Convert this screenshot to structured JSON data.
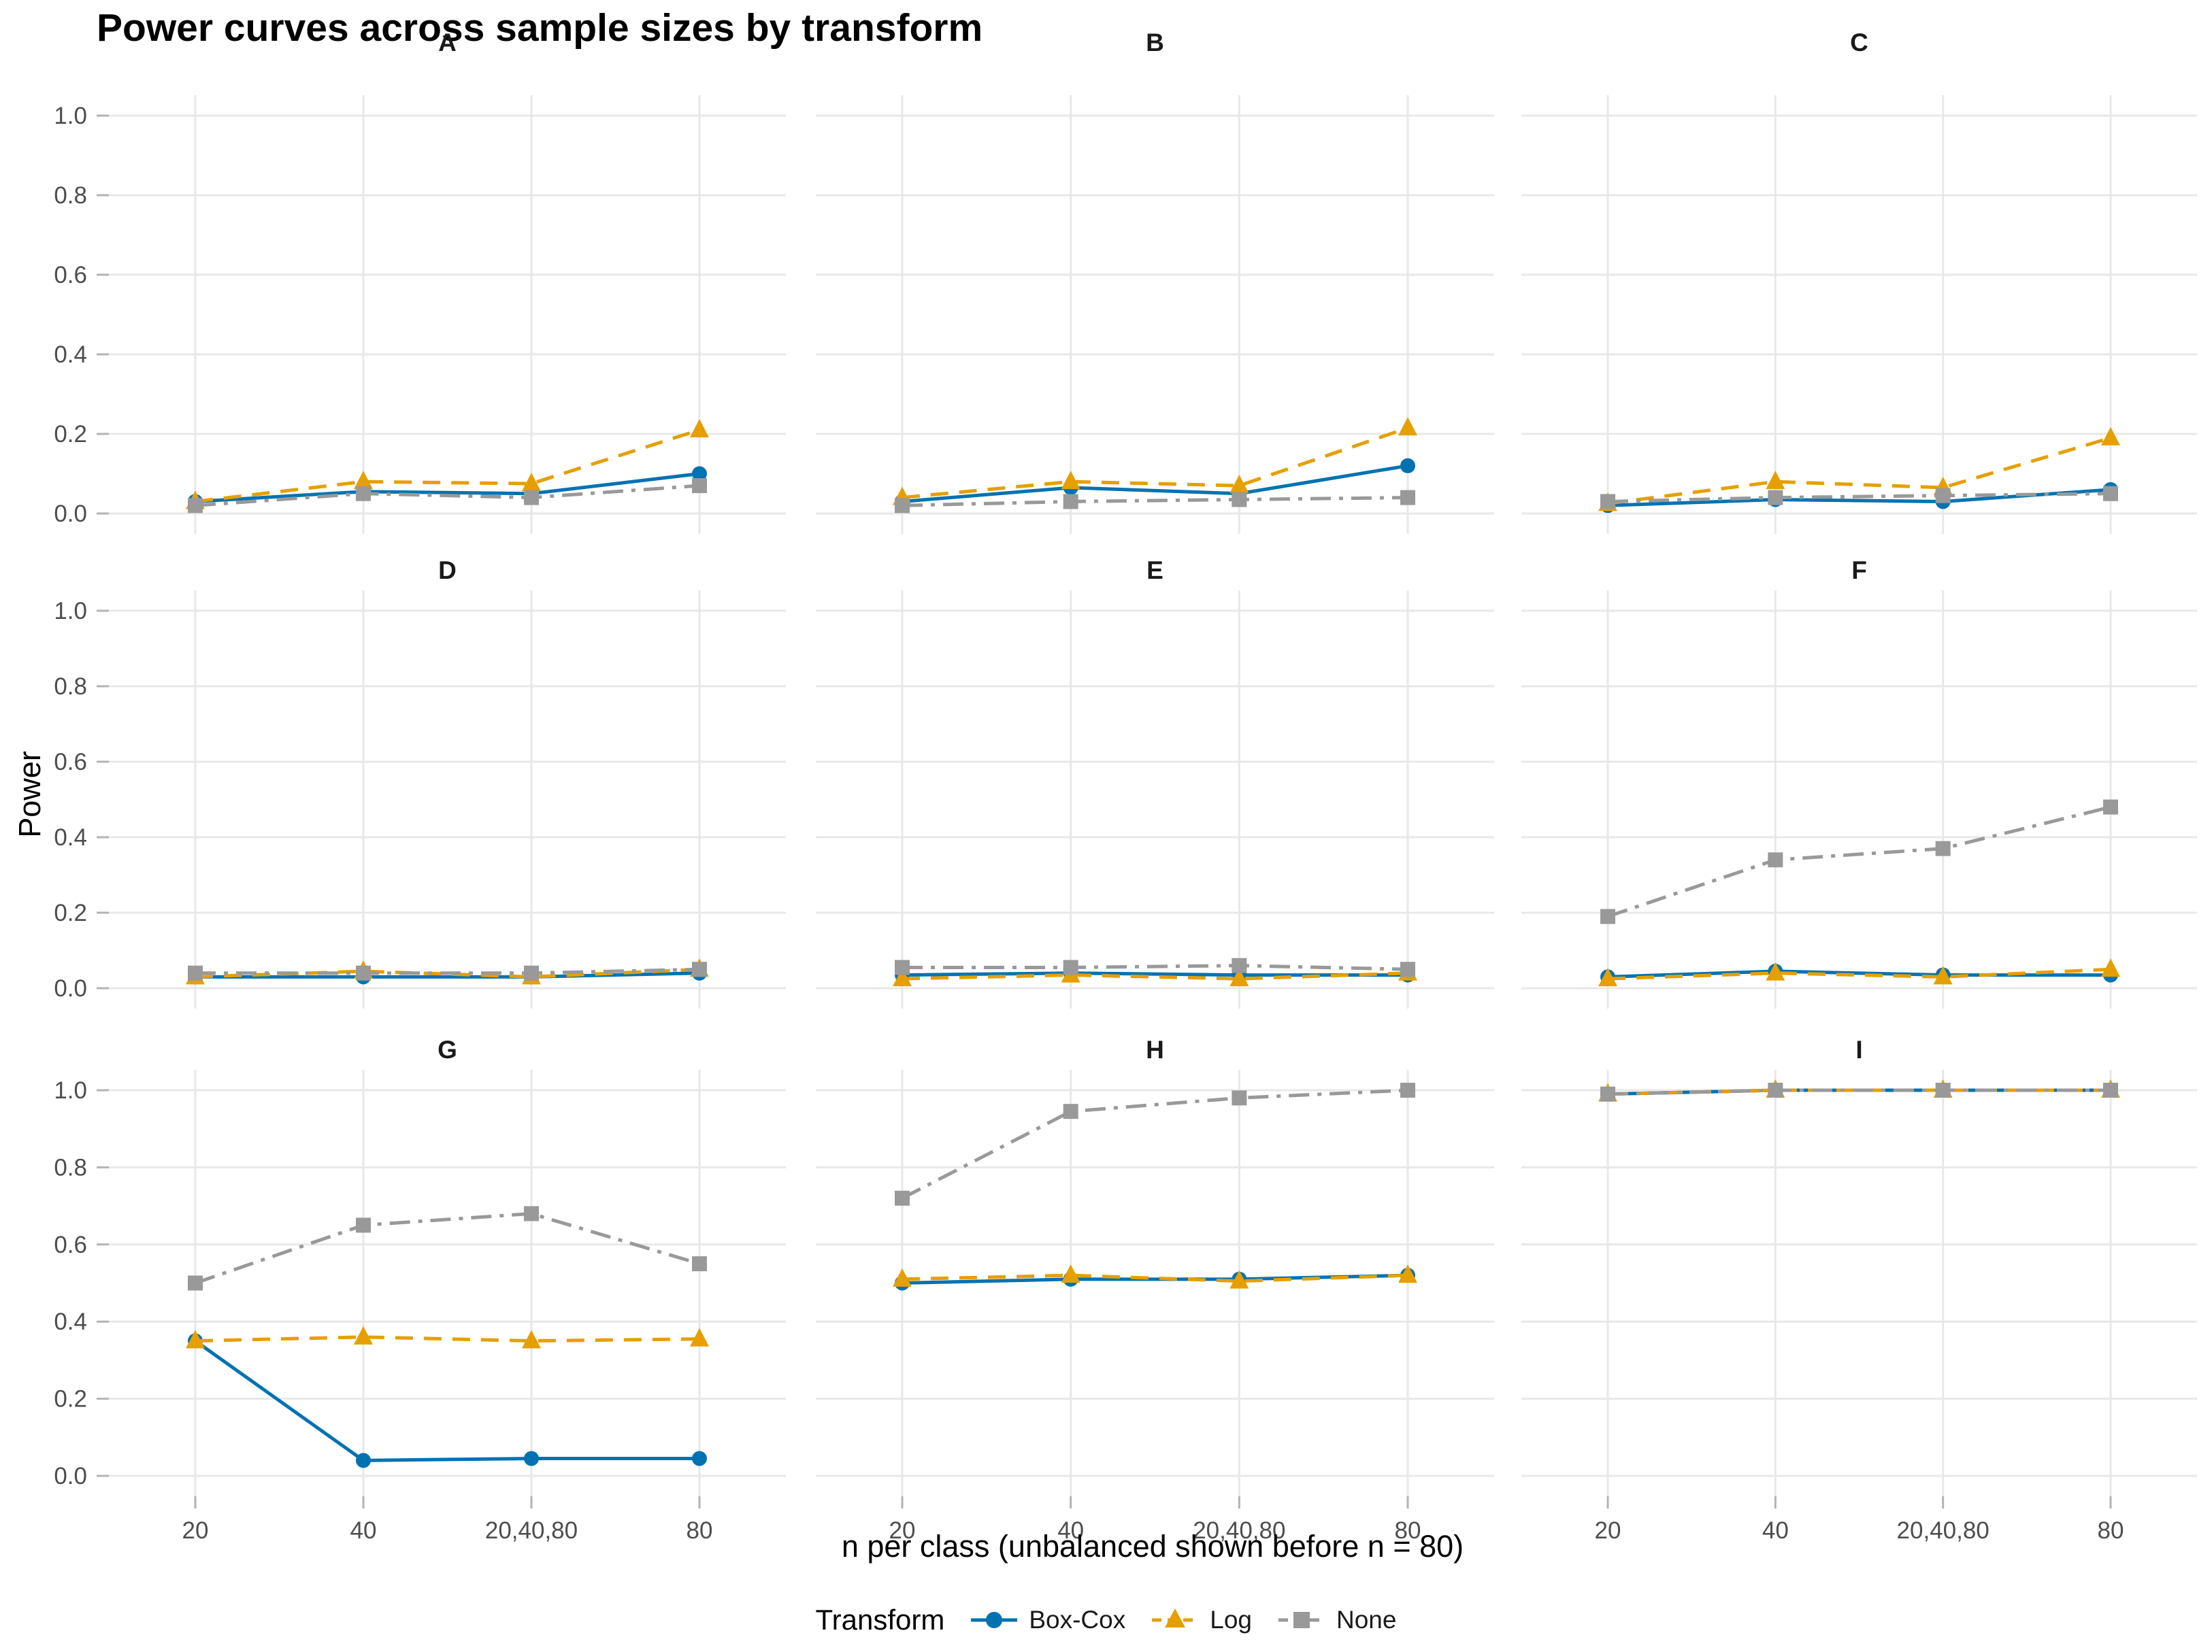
{
  "title": "Power curves across sample sizes by transform",
  "chart_data": {
    "type": "line",
    "title": "Power curves across sample sizes by transform",
    "xlabel": "n per class (unbalanced shown before n = 80)",
    "ylabel": "Power",
    "legend_title": "Transform",
    "legend_position": "bottom",
    "grid": true,
    "ylim": [
      0,
      1
    ],
    "yticks": [
      0.0,
      0.2,
      0.4,
      0.6,
      0.8,
      1.0
    ],
    "categories": [
      "20",
      "40",
      "20,40,80",
      "80"
    ],
    "series_meta": [
      {
        "name": "Box-Cox",
        "color": "#0072B2",
        "line": "solid",
        "marker": "circle"
      },
      {
        "name": "Log",
        "color": "#E69F00",
        "line": "dashed",
        "marker": "triangle"
      },
      {
        "name": "None",
        "color": "#999999",
        "line": "dashdot",
        "marker": "square"
      }
    ],
    "facets": [
      {
        "label": "A",
        "series": [
          {
            "name": "Box-Cox",
            "values": [
              0.03,
              0.055,
              0.05,
              0.1
            ]
          },
          {
            "name": "Log",
            "values": [
              0.03,
              0.08,
              0.075,
              0.21
            ]
          },
          {
            "name": "None",
            "values": [
              0.02,
              0.05,
              0.04,
              0.07
            ]
          }
        ]
      },
      {
        "label": "B",
        "series": [
          {
            "name": "Box-Cox",
            "values": [
              0.03,
              0.065,
              0.05,
              0.12
            ]
          },
          {
            "name": "Log",
            "values": [
              0.04,
              0.08,
              0.07,
              0.215
            ]
          },
          {
            "name": "None",
            "values": [
              0.02,
              0.03,
              0.035,
              0.04
            ]
          }
        ]
      },
      {
        "label": "C",
        "series": [
          {
            "name": "Box-Cox",
            "values": [
              0.02,
              0.035,
              0.03,
              0.06
            ]
          },
          {
            "name": "Log",
            "values": [
              0.025,
              0.08,
              0.065,
              0.19
            ]
          },
          {
            "name": "None",
            "values": [
              0.03,
              0.04,
              0.045,
              0.05
            ]
          }
        ]
      },
      {
        "label": "D",
        "series": [
          {
            "name": "Box-Cox",
            "values": [
              0.03,
              0.03,
              0.03,
              0.04
            ]
          },
          {
            "name": "Log",
            "values": [
              0.03,
              0.045,
              0.03,
              0.05
            ]
          },
          {
            "name": "None",
            "values": [
              0.04,
              0.04,
              0.04,
              0.05
            ]
          }
        ]
      },
      {
        "label": "E",
        "series": [
          {
            "name": "Box-Cox",
            "values": [
              0.035,
              0.04,
              0.035,
              0.035
            ]
          },
          {
            "name": "Log",
            "values": [
              0.025,
              0.035,
              0.025,
              0.04
            ]
          },
          {
            "name": "None",
            "values": [
              0.055,
              0.055,
              0.06,
              0.05
            ]
          }
        ]
      },
      {
        "label": "F",
        "series": [
          {
            "name": "Box-Cox",
            "values": [
              0.03,
              0.045,
              0.035,
              0.035
            ]
          },
          {
            "name": "Log",
            "values": [
              0.025,
              0.04,
              0.03,
              0.05
            ]
          },
          {
            "name": "None",
            "values": [
              0.19,
              0.34,
              0.37,
              0.48
            ]
          }
        ]
      },
      {
        "label": "G",
        "series": [
          {
            "name": "Box-Cox",
            "values": [
              0.35,
              0.04,
              0.045,
              0.045
            ]
          },
          {
            "name": "Log",
            "values": [
              0.35,
              0.36,
              0.35,
              0.355
            ]
          },
          {
            "name": "None",
            "values": [
              0.5,
              0.65,
              0.68,
              0.55
            ]
          }
        ]
      },
      {
        "label": "H",
        "series": [
          {
            "name": "Box-Cox",
            "values": [
              0.5,
              0.51,
              0.51,
              0.52
            ]
          },
          {
            "name": "Log",
            "values": [
              0.51,
              0.52,
              0.505,
              0.52
            ]
          },
          {
            "name": "None",
            "values": [
              0.72,
              0.945,
              0.98,
              1.0
            ]
          }
        ]
      },
      {
        "label": "I",
        "series": [
          {
            "name": "Box-Cox",
            "values": [
              0.99,
              1.0,
              1.0,
              1.0
            ]
          },
          {
            "name": "Log",
            "values": [
              0.99,
              1.0,
              1.0,
              1.0
            ]
          },
          {
            "name": "None",
            "values": [
              0.99,
              1.0,
              1.0,
              1.0
            ]
          }
        ]
      }
    ],
    "style": {
      "grid_color": "#E8E8E8",
      "tick_color": "#B3B3B3",
      "tick_label_color": "#4D4D4D",
      "strip_label_color": "#1A1A1A"
    }
  }
}
